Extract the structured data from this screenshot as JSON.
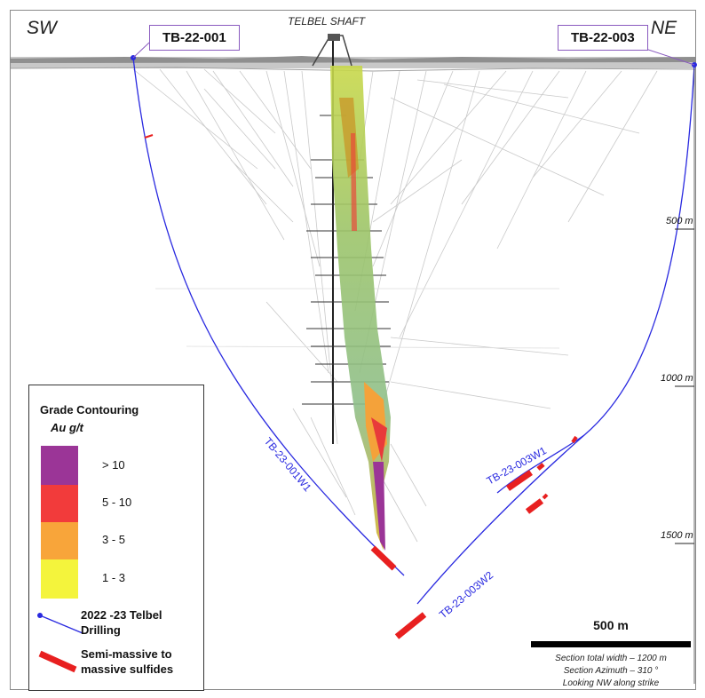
{
  "directions": {
    "left": "SW",
    "right": "NE"
  },
  "shaft_label": "TELBEL SHAFT",
  "drill_hole_labels": {
    "left": "TB-22-001",
    "right": "TB-22-003"
  },
  "depth_ticks": [
    "500 m",
    "1000 m",
    "1500 m"
  ],
  "wedge_labels": [
    "TB-23-001W1",
    "TB-23-003W1",
    "TB-23-003W2"
  ],
  "legend": {
    "title": "Grade Contouring",
    "unit": "Au g/t",
    "ranges": [
      {
        "label": "> 10",
        "color": "#9b3597"
      },
      {
        "label": "5 - 10",
        "color": "#f23b3b"
      },
      {
        "label": "3 - 5",
        "color": "#f8a53a"
      },
      {
        "label": "1 - 3",
        "color": "#f4f43c"
      }
    ],
    "drilling_label": "2022 -23 Telbel Drilling",
    "sulfides_label": "Semi-massive to massive sulfides"
  },
  "scale": {
    "label": "500 m",
    "notes": [
      "Section total width – 1200 m",
      "Section Azimuth – 310 °",
      "Looking NW along strike"
    ]
  },
  "colors": {
    "drill": "#2a2ae0",
    "sulfide": "#e82020"
  }
}
